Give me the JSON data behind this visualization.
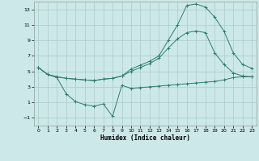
{
  "xlabel": "Humidex (Indice chaleur)",
  "bg_color": "#cce8e8",
  "grid_color": "#aacccc",
  "line_color": "#2e7d6e",
  "xlim": [
    -0.5,
    23.5
  ],
  "ylim": [
    -2.0,
    14.0
  ],
  "yticks": [
    -1,
    1,
    3,
    5,
    7,
    9,
    11,
    13
  ],
  "xticks": [
    0,
    1,
    2,
    3,
    4,
    5,
    6,
    7,
    8,
    9,
    10,
    11,
    12,
    13,
    14,
    15,
    16,
    17,
    18,
    19,
    20,
    21,
    22,
    23
  ],
  "line1_x": [
    0,
    1,
    2,
    3,
    4,
    5,
    6,
    7,
    8,
    9,
    10,
    11,
    12,
    13,
    14,
    15,
    16,
    17,
    18,
    19,
    20,
    21,
    22,
    23
  ],
  "line1_y": [
    5.5,
    4.6,
    4.2,
    2.1,
    1.1,
    0.7,
    0.5,
    0.8,
    -0.8,
    3.2,
    2.8,
    2.9,
    3.0,
    3.1,
    3.2,
    3.3,
    3.4,
    3.5,
    3.6,
    3.7,
    3.9,
    4.2,
    4.3,
    4.3
  ],
  "line2_x": [
    0,
    1,
    2,
    3,
    4,
    5,
    6,
    7,
    8,
    9,
    10,
    11,
    12,
    13,
    14,
    15,
    16,
    17,
    18,
    19,
    20,
    21,
    22,
    23
  ],
  "line2_y": [
    5.5,
    4.6,
    4.3,
    4.1,
    4.0,
    3.9,
    3.8,
    4.0,
    4.1,
    4.4,
    5.3,
    5.8,
    6.3,
    7.0,
    9.0,
    11.0,
    13.5,
    13.7,
    13.3,
    12.0,
    10.2,
    7.4,
    5.9,
    5.4
  ],
  "line3_x": [
    0,
    1,
    2,
    3,
    4,
    5,
    6,
    7,
    8,
    9,
    10,
    11,
    12,
    13,
    14,
    15,
    16,
    17,
    18,
    19,
    20,
    21,
    22,
    23
  ],
  "line3_y": [
    5.5,
    4.6,
    4.3,
    4.1,
    4.0,
    3.9,
    3.8,
    4.0,
    4.1,
    4.4,
    5.0,
    5.5,
    6.0,
    6.7,
    8.0,
    9.2,
    10.0,
    10.2,
    10.0,
    7.4,
    5.9,
    4.8,
    4.4,
    4.3
  ]
}
